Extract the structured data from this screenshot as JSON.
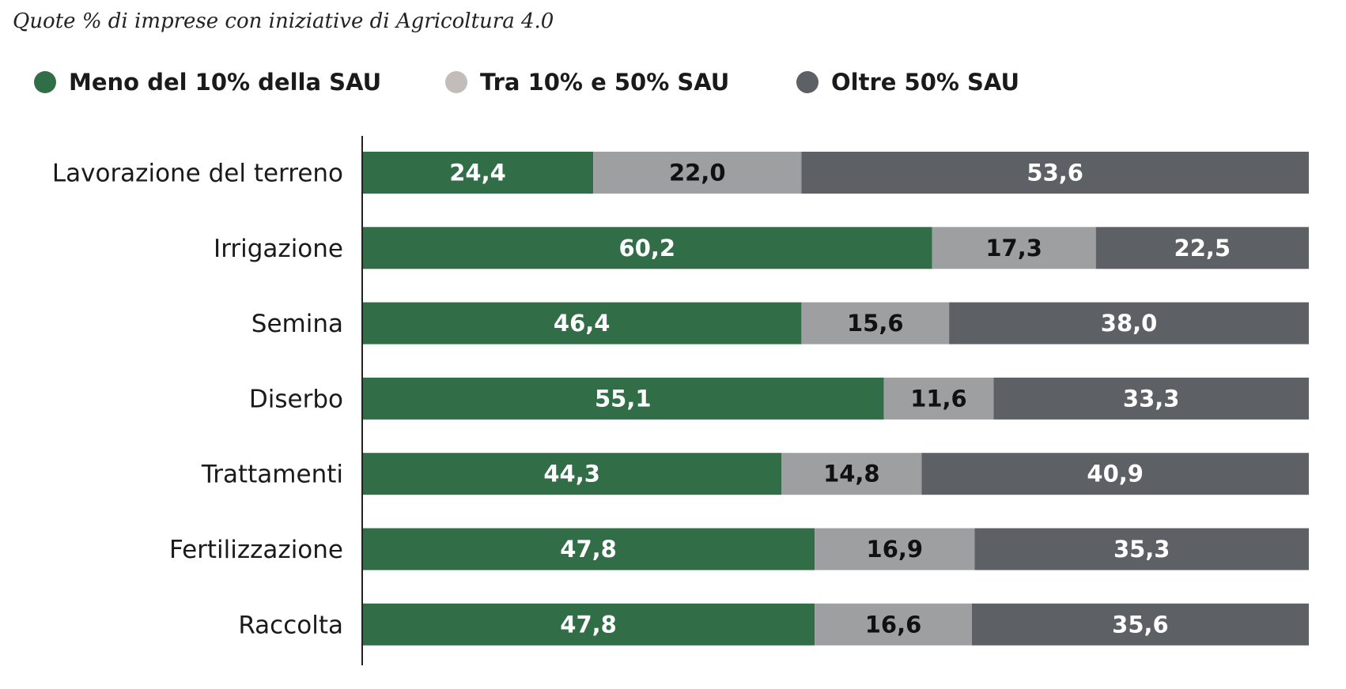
{
  "chart_data": {
    "type": "bar",
    "orientation": "horizontal",
    "stacked": true,
    "title": "Quote % di imprese con iniziative di Agricoltura 4.0",
    "categories": [
      "Lavorazione del terreno",
      "Irrigazione",
      "Semina",
      "Diserbo",
      "Trattamenti",
      "Fertilizzazione",
      "Raccolta"
    ],
    "series": [
      {
        "name": "Meno del 10% della SAU",
        "color": "#316d46",
        "label_color": "#ffffff",
        "values": [
          24.4,
          60.2,
          46.4,
          55.1,
          44.3,
          47.8,
          47.8
        ],
        "labels": [
          "24,4",
          "60,2",
          "46,4",
          "55,1",
          "44,3",
          "47,8",
          "47,8"
        ]
      },
      {
        "name": "Tra 10% e 50% SAU",
        "color": "#9d9fa1",
        "legend_color": "#c2bdb8",
        "label_color": "#111111",
        "values": [
          22.0,
          17.3,
          15.6,
          11.6,
          14.8,
          16.9,
          16.6
        ],
        "labels": [
          "22,0",
          "17,3",
          "15,6",
          "11,6",
          "14,8",
          "16,9",
          "16,6"
        ]
      },
      {
        "name": "Oltre 50% SAU",
        "color": "#5d6064",
        "label_color": "#ffffff",
        "values": [
          53.6,
          22.5,
          38.0,
          33.3,
          40.9,
          35.3,
          35.6
        ],
        "labels": [
          "53,6",
          "22,5",
          "38,0",
          "33,3",
          "40,9",
          "35,3",
          "35,6"
        ]
      }
    ],
    "xlim": [
      0,
      100
    ],
    "grid": false,
    "legend_position": "top"
  }
}
